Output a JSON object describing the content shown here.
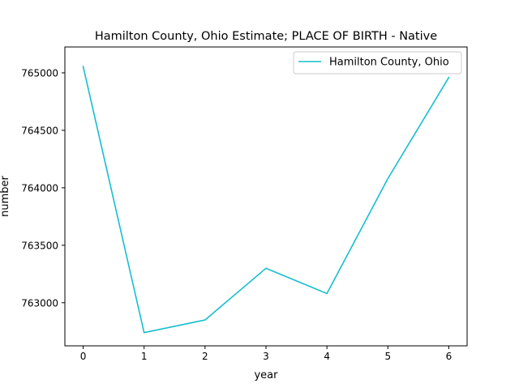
{
  "chart_data": {
    "type": "line",
    "title": "Hamilton County, Ohio Estimate; PLACE OF BIRTH - Native",
    "xlabel": "year",
    "ylabel": "number",
    "x": [
      0,
      1,
      2,
      3,
      4,
      5,
      6
    ],
    "series": [
      {
        "name": "Hamilton County, Ohio",
        "color": "#17becf",
        "values": [
          765055,
          762740,
          762850,
          763300,
          763080,
          764080,
          764960
        ]
      }
    ],
    "xlim": [
      -0.3,
      6.3
    ],
    "ylim": [
      762625,
      765225
    ],
    "xticks": [
      0,
      1,
      2,
      3,
      4,
      5,
      6
    ],
    "yticks": [
      763000,
      763500,
      764000,
      764500,
      765000
    ],
    "grid": false,
    "legend_position": "top-right"
  }
}
